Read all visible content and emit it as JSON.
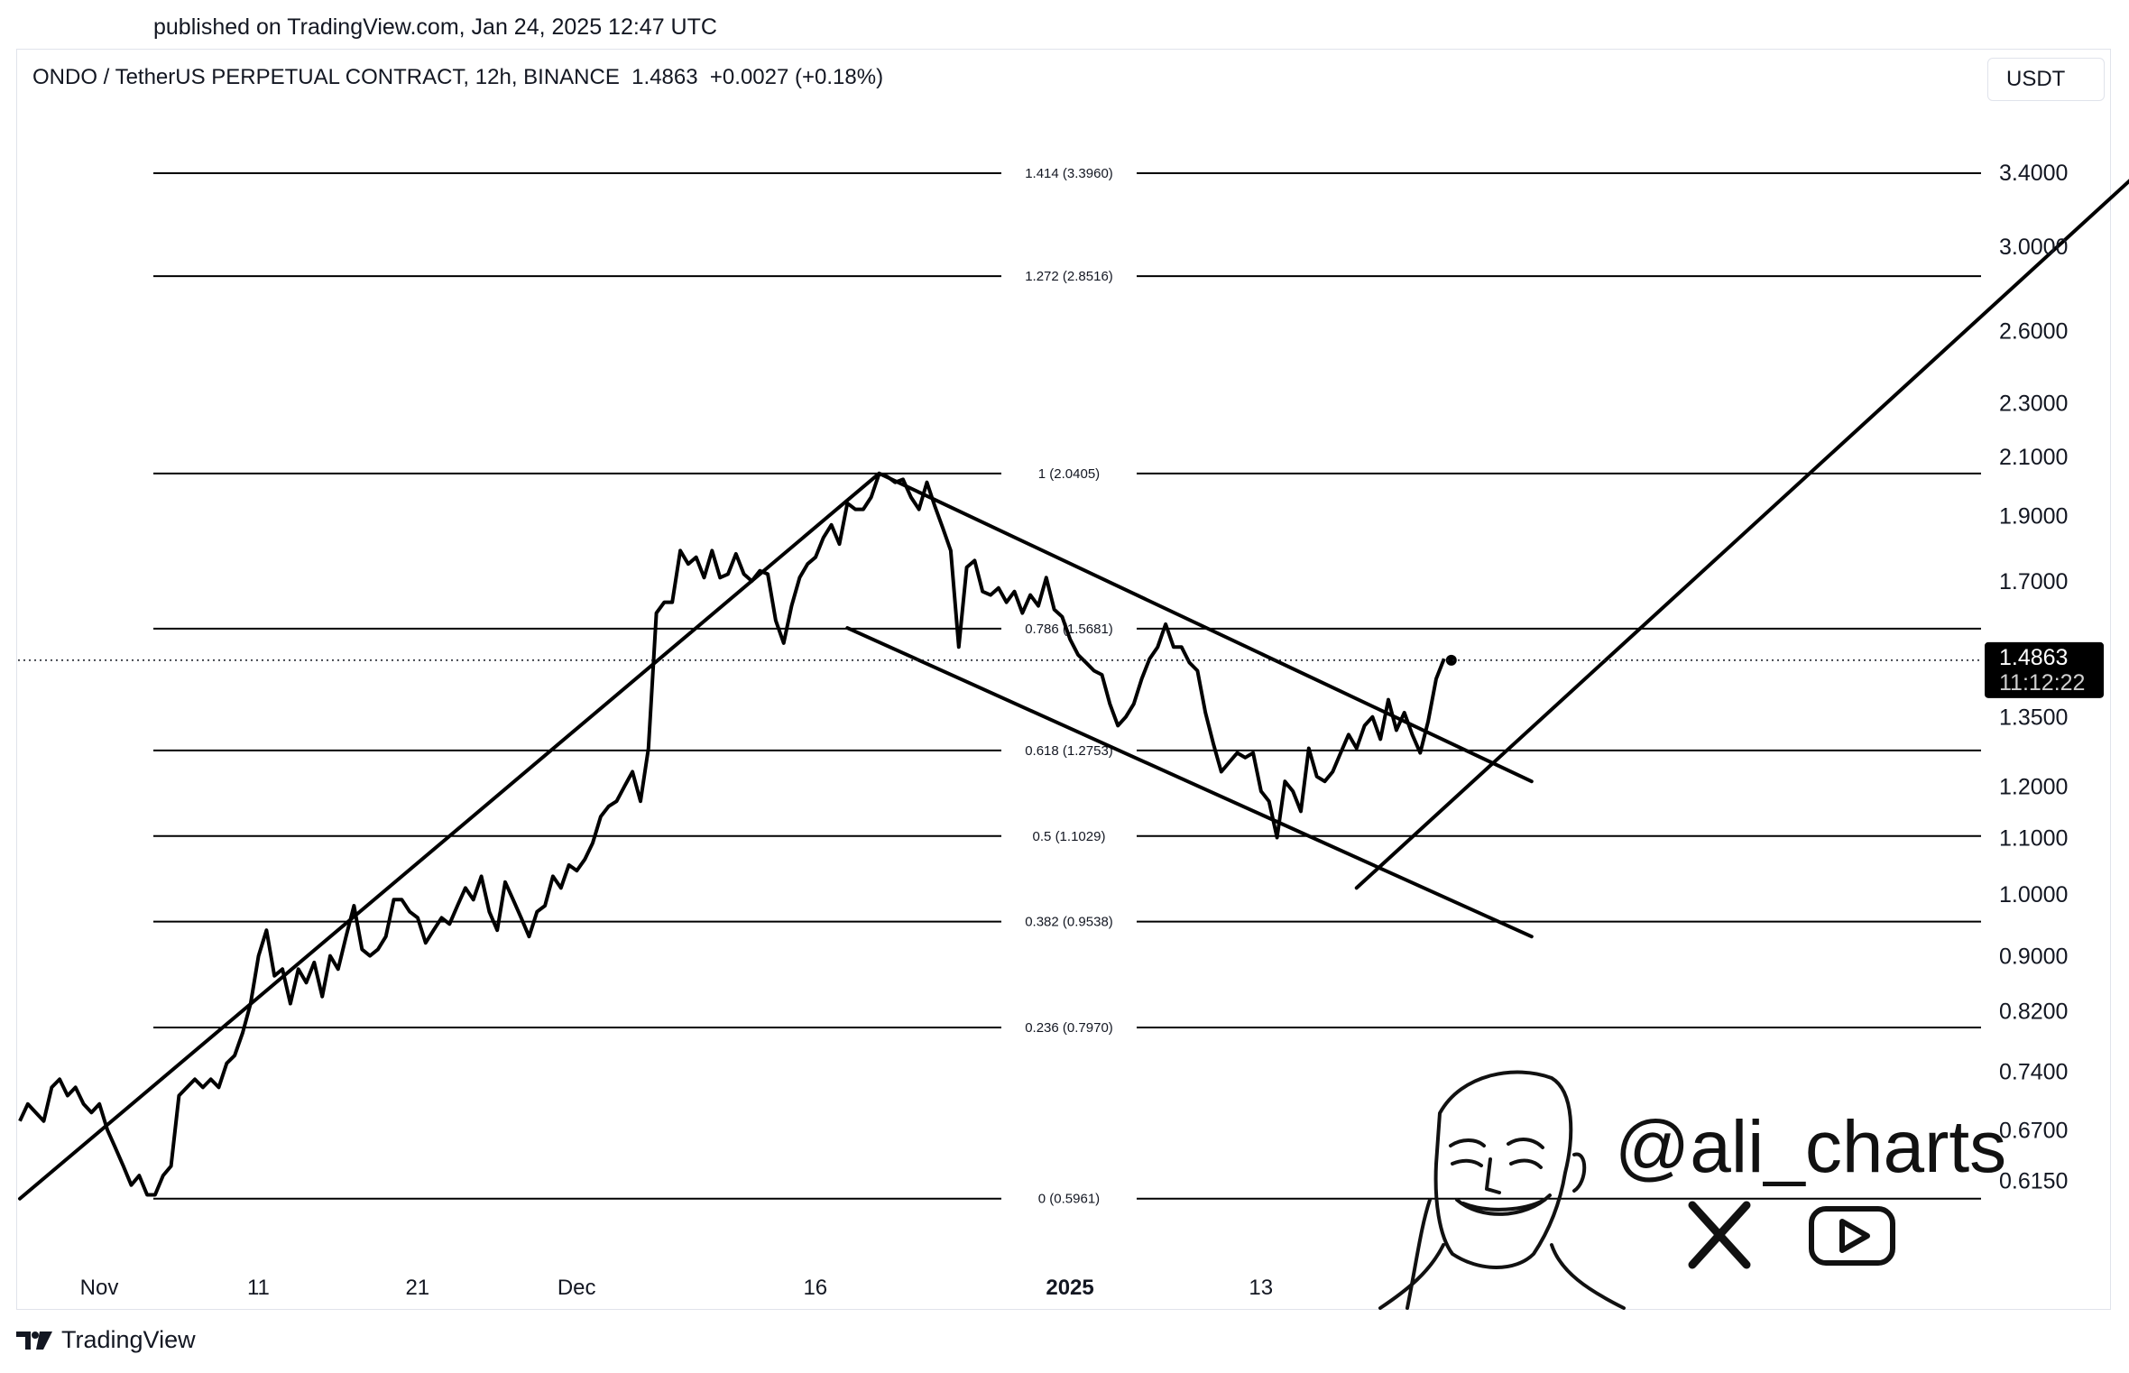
{
  "header": {
    "published": "published on TradingView.com, Jan 24, 2025 12:47 UTC",
    "symbol_line": "ONDO / TetherUS PERPETUAL CONTRACT, 12h, BINANCE  1.4863  +0.0027 (+0.18%)",
    "currency_button": "USDT"
  },
  "footer": {
    "brand": "TradingView"
  },
  "watermark": {
    "handle": "@ali_charts",
    "icons": [
      "x-logo-icon",
      "youtube-play-icon"
    ]
  },
  "price_tag": {
    "price": "1.4863",
    "countdown": "11:12:22"
  },
  "chart_data": {
    "type": "line",
    "scale": "log",
    "ylim": [
      0.57,
      3.7
    ],
    "y_ticks": [
      "3.4000",
      "3.0000",
      "2.6000",
      "2.3000",
      "2.1000",
      "1.9000",
      "1.7000",
      "1.3500",
      "1.2000",
      "1.1000",
      "1.0000",
      "0.9000",
      "0.8200",
      "0.7400",
      "0.6700",
      "0.6150"
    ],
    "x_ticks": [
      {
        "label": "Nov",
        "bar": 0
      },
      {
        "label": "11",
        "bar": 20
      },
      {
        "label": "21",
        "bar": 40
      },
      {
        "label": "Dec",
        "bar": 60
      },
      {
        "label": "16",
        "bar": 90
      },
      {
        "label": "2025",
        "bar": 122,
        "bold": true
      },
      {
        "label": "13",
        "bar": 146
      }
    ],
    "fib_levels": [
      {
        "label": "1.414 (3.3960)",
        "value": 3.396
      },
      {
        "label": "1.272 (2.8516)",
        "value": 2.8516
      },
      {
        "label": "1 (2.0405)",
        "value": 2.0405
      },
      {
        "label": "0.786 (1.5681)",
        "value": 1.5681
      },
      {
        "label": "0.618 (1.2753)",
        "value": 1.2753
      },
      {
        "label": "0.5 (1.1029)",
        "value": 1.1029
      },
      {
        "label": "0.382 (0.9538)",
        "value": 0.9538
      },
      {
        "label": "0.236 (0.7970)",
        "value": 0.797
      },
      {
        "label": "0 (0.5961)",
        "value": 0.5961
      }
    ],
    "last_price": 1.4863,
    "price_series": [
      0.68,
      0.7,
      0.69,
      0.68,
      0.72,
      0.73,
      0.71,
      0.72,
      0.7,
      0.69,
      0.7,
      0.67,
      0.65,
      0.63,
      0.61,
      0.62,
      0.6,
      0.6,
      0.62,
      0.63,
      0.71,
      0.72,
      0.73,
      0.72,
      0.73,
      0.72,
      0.75,
      0.76,
      0.79,
      0.83,
      0.9,
      0.94,
      0.87,
      0.88,
      0.83,
      0.88,
      0.86,
      0.89,
      0.84,
      0.9,
      0.88,
      0.93,
      0.98,
      0.91,
      0.9,
      0.91,
      0.93,
      0.99,
      0.99,
      0.97,
      0.96,
      0.92,
      0.94,
      0.96,
      0.95,
      0.98,
      1.01,
      0.99,
      1.03,
      0.97,
      0.94,
      1.02,
      0.99,
      0.96,
      0.93,
      0.97,
      0.98,
      1.03,
      1.01,
      1.05,
      1.04,
      1.06,
      1.09,
      1.14,
      1.16,
      1.17,
      1.2,
      1.23,
      1.17,
      1.28,
      1.61,
      1.64,
      1.64,
      1.79,
      1.75,
      1.77,
      1.71,
      1.79,
      1.71,
      1.72,
      1.78,
      1.72,
      1.7,
      1.73,
      1.72,
      1.59,
      1.53,
      1.63,
      1.71,
      1.75,
      1.77,
      1.83,
      1.87,
      1.81,
      1.94,
      1.92,
      1.92,
      1.96,
      2.04,
      2.03,
      2.01,
      2.02,
      1.96,
      1.92,
      2.01,
      1.93,
      1.86,
      1.79,
      1.52,
      1.74,
      1.76,
      1.67,
      1.66,
      1.68,
      1.64,
      1.67,
      1.61,
      1.66,
      1.63,
      1.71,
      1.62,
      1.6,
      1.54,
      1.5,
      1.48,
      1.46,
      1.45,
      1.38,
      1.33,
      1.35,
      1.38,
      1.44,
      1.49,
      1.52,
      1.58,
      1.52,
      1.52,
      1.48,
      1.46,
      1.36,
      1.29,
      1.23,
      1.25,
      1.27,
      1.26,
      1.27,
      1.19,
      1.17,
      1.1,
      1.21,
      1.19,
      1.15,
      1.28,
      1.22,
      1.21,
      1.23,
      1.27,
      1.31,
      1.28,
      1.33,
      1.35,
      1.3,
      1.39,
      1.32,
      1.36,
      1.31,
      1.27,
      1.34,
      1.44,
      1.49
    ],
    "trendlines": [
      {
        "name": "uptrend-support",
        "from": {
          "bar": 0,
          "price": 0.5961
        },
        "to": {
          "bar": 108,
          "price": 2.0405
        }
      },
      {
        "name": "channel-upper",
        "from": {
          "bar": 108,
          "price": 2.0405
        },
        "to": {
          "bar": 190,
          "price": 1.21
        }
      },
      {
        "name": "channel-lower",
        "from": {
          "bar": 104,
          "price": 1.57
        },
        "to": {
          "bar": 190,
          "price": 0.93
        }
      },
      {
        "name": "breakout-target",
        "from": {
          "bar": 168,
          "price": 1.01
        },
        "to": {
          "bar": 270,
          "price": 3.56
        }
      }
    ]
  }
}
